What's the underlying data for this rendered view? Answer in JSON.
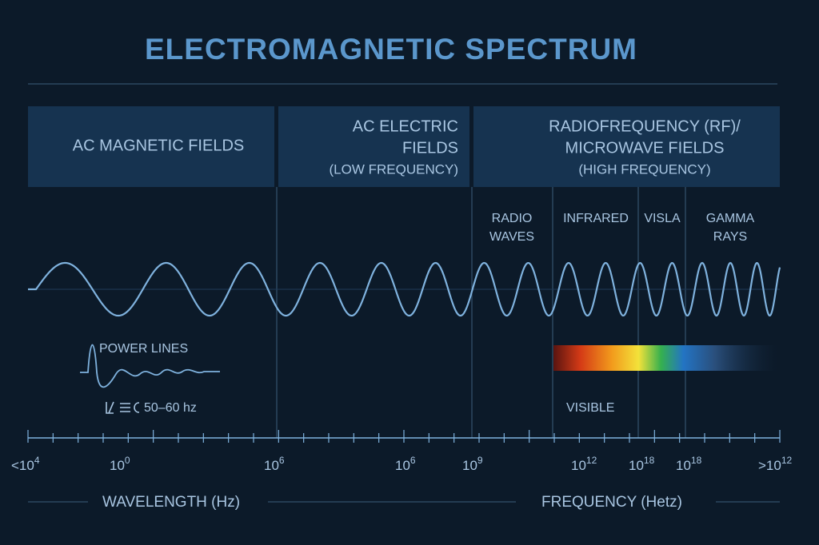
{
  "title": "ELECTROMAGNETIC SPECTRUM",
  "sections": [
    {
      "lines": [
        "AC MAGNETIC FIELDS"
      ]
    },
    {
      "lines": [
        "AC ELECTRIC",
        "FIELDS"
      ],
      "note": "(LOW FREQUENCY)"
    },
    {
      "lines": [
        "RADIOFREQUENCY (RF)/",
        "MICROWAVE FIELDS"
      ],
      "note": "(HIGH FREQUENCY)"
    }
  ],
  "bands": [
    {
      "lines": [
        "RADIO",
        "WAVES"
      ]
    },
    {
      "lines": [
        "INFRARED"
      ]
    },
    {
      "lines": [
        "VISLA"
      ]
    },
    {
      "lines": [
        "GAMMA",
        "RAYS"
      ]
    }
  ],
  "power_lines": {
    "label": "POWER LINES",
    "frequency": "50–60 hz"
  },
  "visible_label": "VISIBLE",
  "axis": {
    "ticks": [
      {
        "base": "<10",
        "exp": "4"
      },
      {
        "base": "10",
        "exp": "0"
      },
      {
        "base": "10",
        "exp": "6"
      },
      {
        "base": "10",
        "exp": "6"
      },
      {
        "base": "10",
        "exp": "9"
      },
      {
        "base": "10",
        "exp": "12"
      },
      {
        "base": "10",
        "exp": "18"
      },
      {
        "base": "10",
        "exp": "18"
      },
      {
        "base": ">10",
        "exp": "12"
      }
    ],
    "wavelength_label": "WAVELENGTH (Hz)",
    "frequency_label": "FREQUENCY (Hetz)"
  }
}
